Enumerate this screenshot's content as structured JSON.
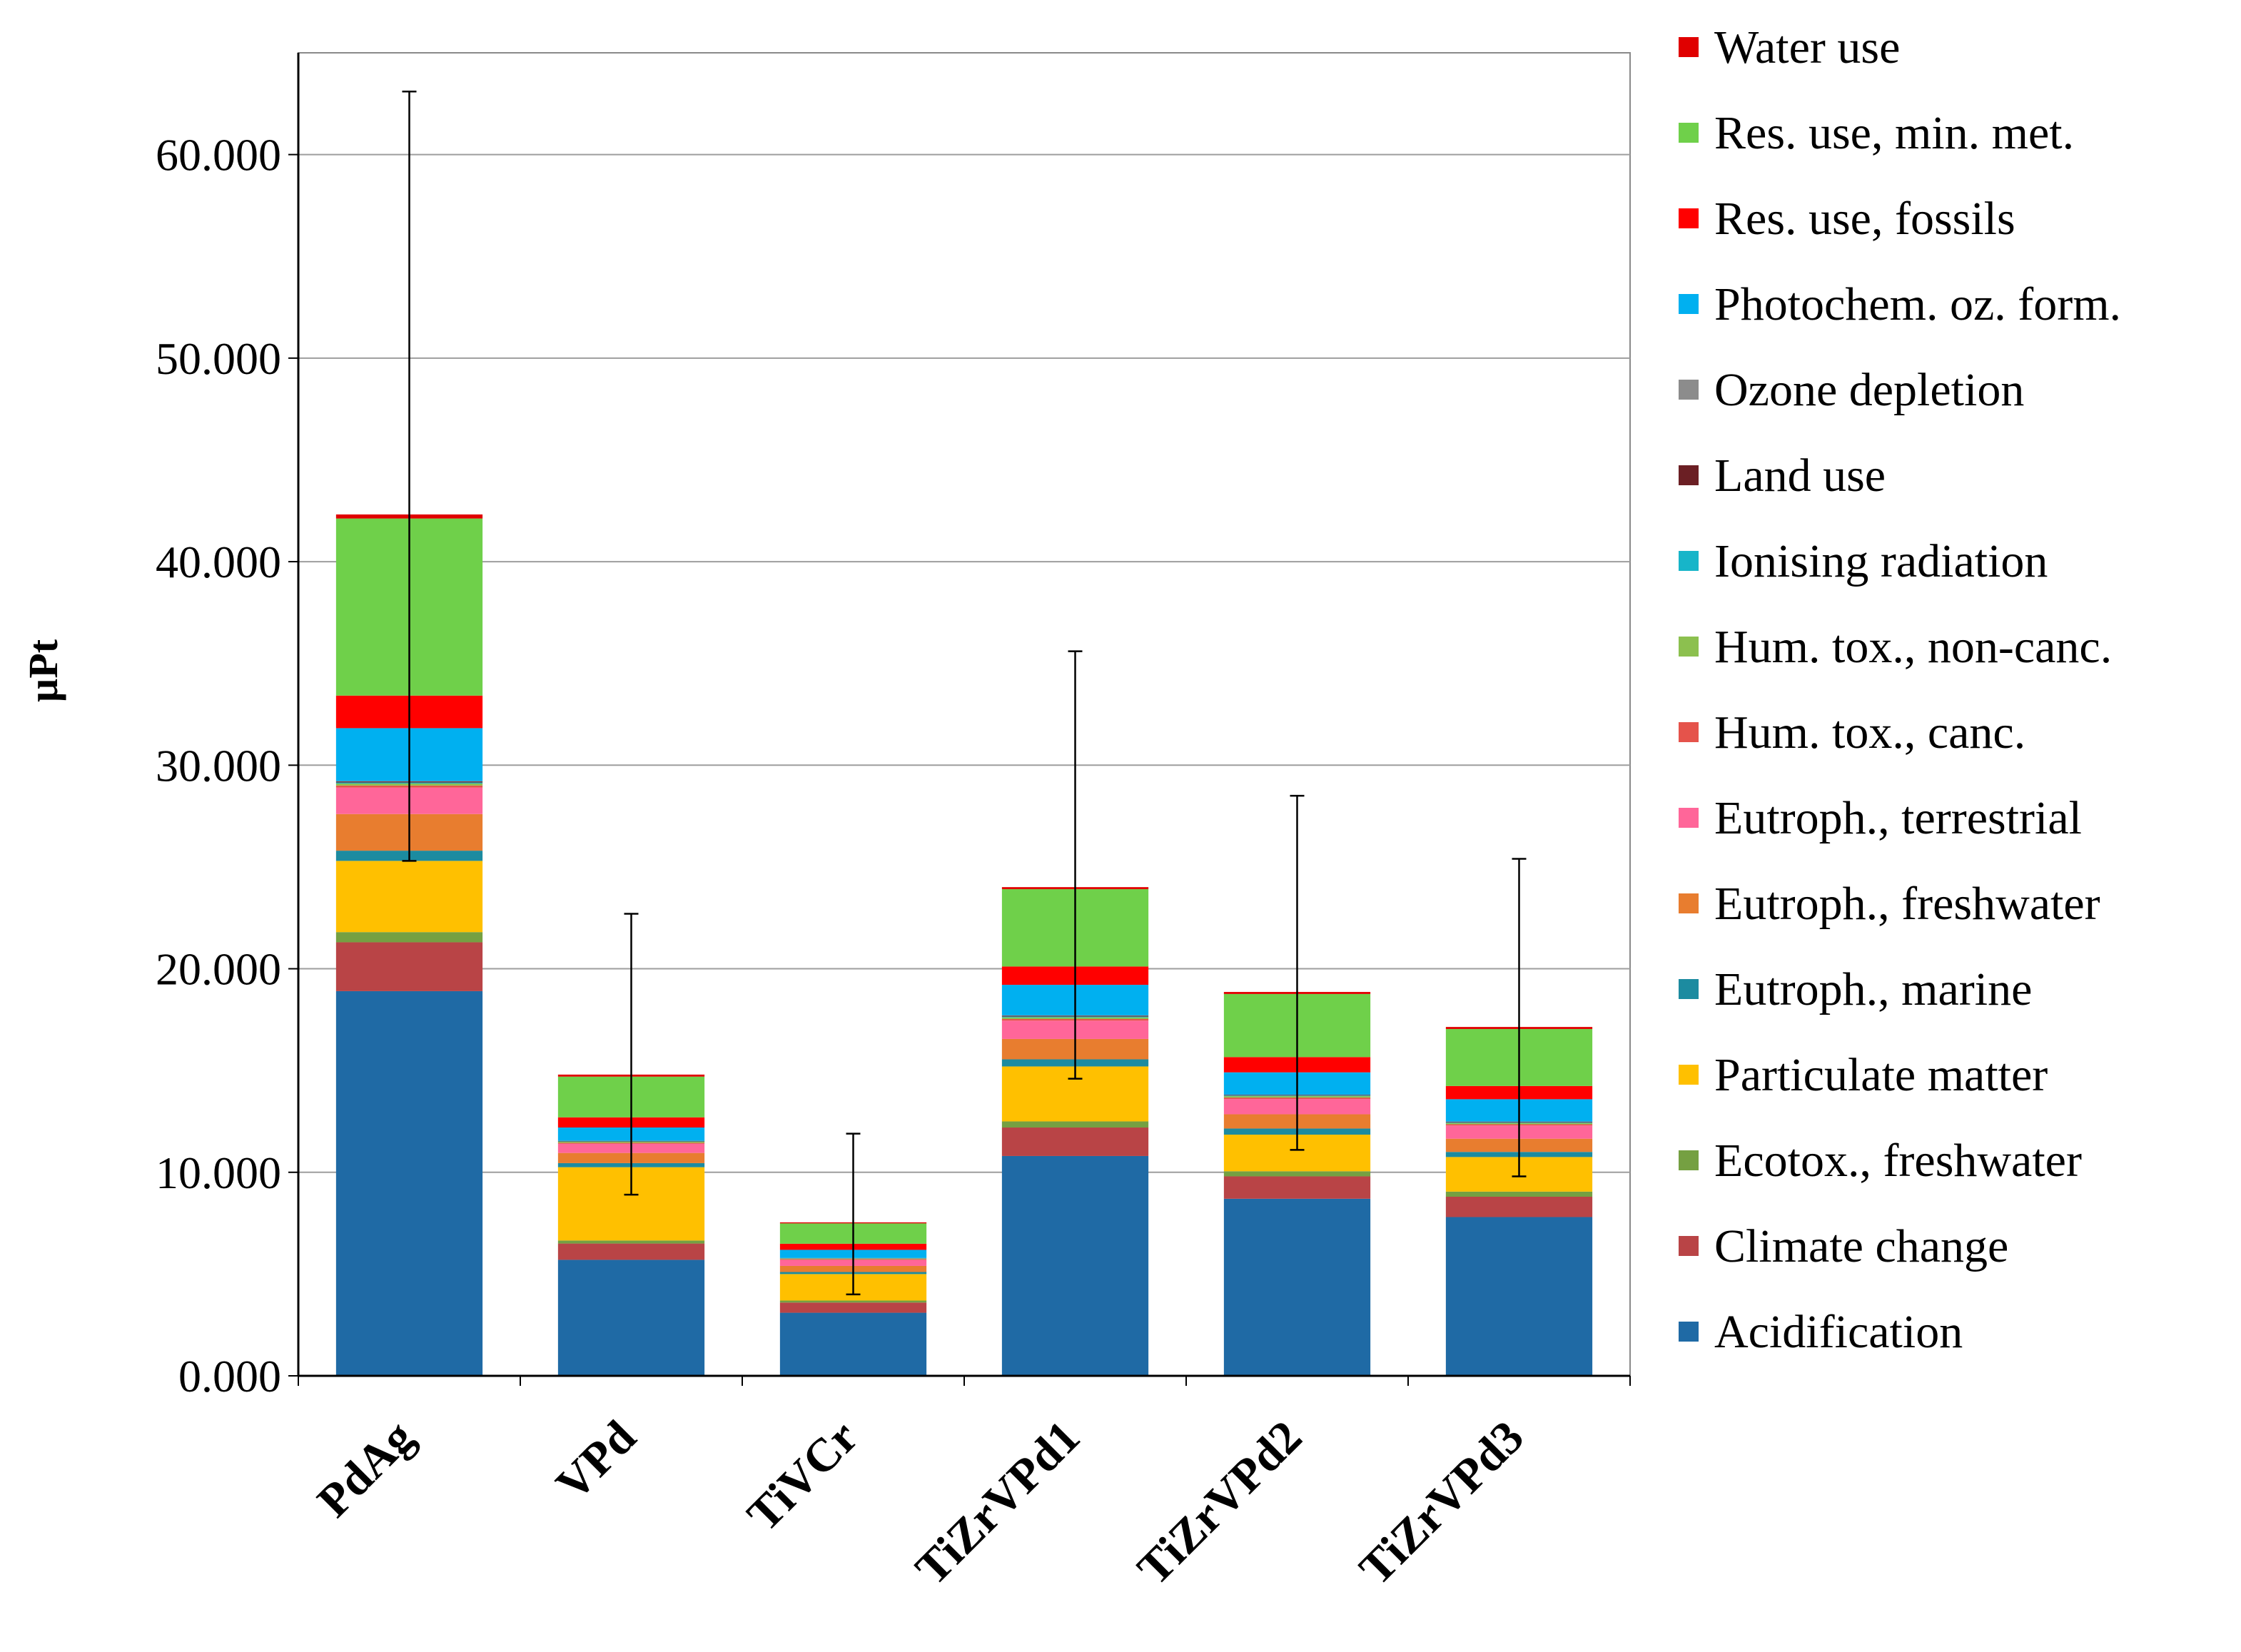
{
  "chart_data": {
    "type": "bar",
    "stacked": true,
    "title": "",
    "xlabel": "",
    "ylabel": "µPt",
    "ylim": [
      0,
      65000
    ],
    "yticks": [
      0,
      10000,
      20000,
      30000,
      40000,
      50000,
      60000
    ],
    "ytick_labels": [
      "0.000",
      "10.000",
      "20.000",
      "30.000",
      "40.000",
      "50.000",
      "60.000"
    ],
    "grid": true,
    "legend_position": "right",
    "categories": [
      "PdAg",
      "VPd",
      "TiVCr",
      "TiZrVPd1",
      "TiZrVPd2",
      "TiZrVPd3"
    ],
    "series": [
      {
        "name": "Acidification",
        "color": "#1f6aa5",
        "values": [
          18900,
          5700,
          3100,
          10800,
          8700,
          7800
        ]
      },
      {
        "name": "Climate change",
        "color": "#b94446",
        "values": [
          2400,
          800,
          500,
          1400,
          1100,
          1000
        ]
      },
      {
        "name": "Ecotox., freshwater",
        "color": "#75a042",
        "values": [
          500,
          150,
          100,
          300,
          250,
          250
        ]
      },
      {
        "name": "Particulate matter",
        "color": "#ffc000",
        "values": [
          3500,
          3600,
          1300,
          2700,
          1800,
          1700
        ]
      },
      {
        "name": "Eutroph., marine",
        "color": "#1c8ba0",
        "values": [
          500,
          200,
          100,
          350,
          300,
          250
        ]
      },
      {
        "name": "Eutroph., freshwater",
        "color": "#e87d2f",
        "values": [
          1800,
          500,
          300,
          1000,
          700,
          650
        ]
      },
      {
        "name": "Eutroph., terrestrial",
        "color": "#ff6699",
        "values": [
          1300,
          450,
          300,
          900,
          750,
          650
        ]
      },
      {
        "name": "Hum. tox., canc.",
        "color": "#e5534b",
        "values": [
          100,
          50,
          30,
          80,
          70,
          60
        ]
      },
      {
        "name": "Hum. tox., non-canc.",
        "color": "#8cc04f",
        "values": [
          100,
          50,
          30,
          80,
          70,
          60
        ]
      },
      {
        "name": "Ionising radiation",
        "color": "#17b5c9",
        "values": [
          50,
          20,
          10,
          40,
          30,
          30
        ]
      },
      {
        "name": "Land use",
        "color": "#6b1f24",
        "values": [
          50,
          20,
          10,
          40,
          30,
          30
        ]
      },
      {
        "name": "Ozone depletion",
        "color": "#8c8c8c",
        "values": [
          20,
          10,
          10,
          20,
          10,
          10
        ]
      },
      {
        "name": "Photochem. oz. form.",
        "color": "#00b0f0",
        "values": [
          2600,
          650,
          400,
          1500,
          1100,
          1100
        ]
      },
      {
        "name": "Res. use, fossils",
        "color": "#ff0000",
        "values": [
          1600,
          500,
          300,
          900,
          750,
          650
        ]
      },
      {
        "name": "Res. use, min. met.",
        "color": "#6fd04a",
        "values": [
          8700,
          2000,
          1000,
          3800,
          3100,
          2800
        ]
      },
      {
        "name": "Water use",
        "color": "#e00000",
        "values": [
          200,
          100,
          50,
          100,
          100,
          100
        ]
      }
    ],
    "error_bars": {
      "low": [
        25300,
        8900,
        4000,
        14600,
        11100,
        9800
      ],
      "high": [
        63100,
        22700,
        11900,
        35600,
        28500,
        25400
      ]
    }
  }
}
